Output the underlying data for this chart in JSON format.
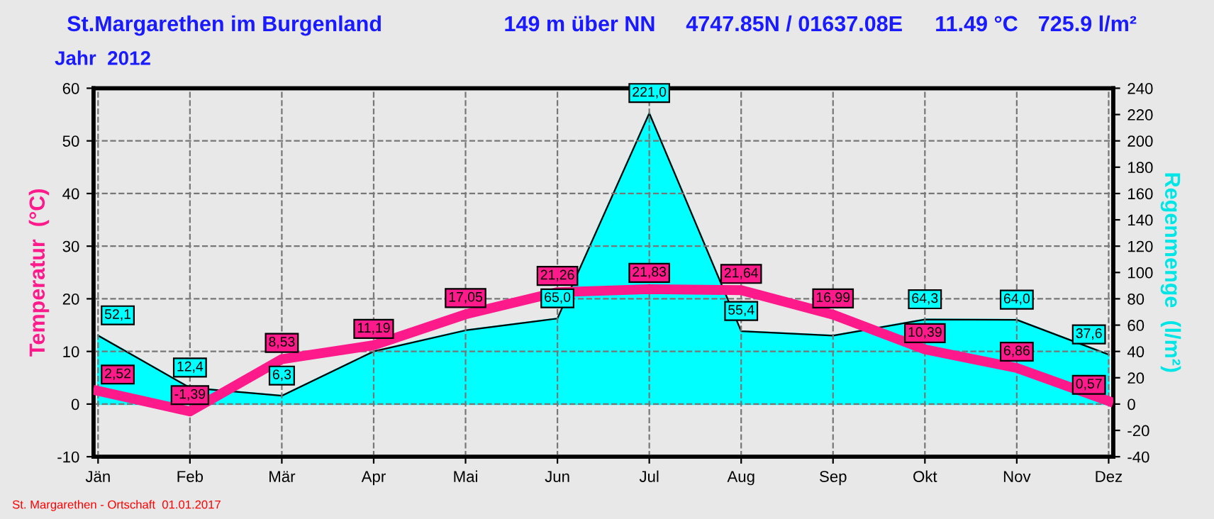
{
  "chart_data": {
    "type": "area",
    "title": "St.Margarethen im Burgenland",
    "subtitle": "Jahr  2012",
    "annotations": [
      "149 m über NN",
      "4747.85N / 01637.08E",
      "11.49 °C",
      "725.9 l/m²",
      "St. Margarethen - Ortschaft  01.01.2017"
    ],
    "ylabel": "Temperatur  (°C)",
    "y2label": "Regenmenge  (l/m²)",
    "categories": [
      "Jän",
      "Feb",
      "Mär",
      "Apr",
      "Mai",
      "Jun",
      "Jul",
      "Aug",
      "Sep",
      "Okt",
      "Nov",
      "Dez"
    ],
    "series": [
      {
        "axis": "y2",
        "color": "#00ffff",
        "values": [
          52.1,
          12.4,
          6.3,
          40,
          56,
          65.0,
          221.0,
          55.4,
          52,
          64.3,
          64.0,
          37.6
        ],
        "value_labels": [
          "52,1",
          "12,4",
          "6,3",
          null,
          null,
          "65,0",
          "221,0",
          "55,4",
          null,
          "64,3",
          "64,0",
          "37,6"
        ]
      },
      {
        "type": "line",
        "axis": "y",
        "color": "#ff1a8c",
        "values": [
          2.52,
          -1.39,
          8.53,
          11.19,
          17.05,
          21.26,
          21.83,
          21.64,
          16.99,
          10.39,
          6.86,
          0.57
        ],
        "value_labels": [
          "2,52",
          "-1,39",
          "8,53",
          "11,19",
          "17,05",
          "21,26",
          "21,83",
          "21,64",
          "16,99",
          "10,39",
          "6,86",
          "0,57"
        ]
      }
    ],
    "ylim": [
      -10,
      60
    ],
    "yticks": [
      -10,
      0,
      10,
      20,
      30,
      40,
      50,
      60
    ],
    "y2lim": [
      -40,
      240
    ],
    "y2ticks": [
      -40,
      -20,
      0,
      20,
      40,
      60,
      80,
      100,
      120,
      140,
      160,
      180,
      200,
      220,
      240
    ],
    "grid": true,
    "legend": false
  }
}
